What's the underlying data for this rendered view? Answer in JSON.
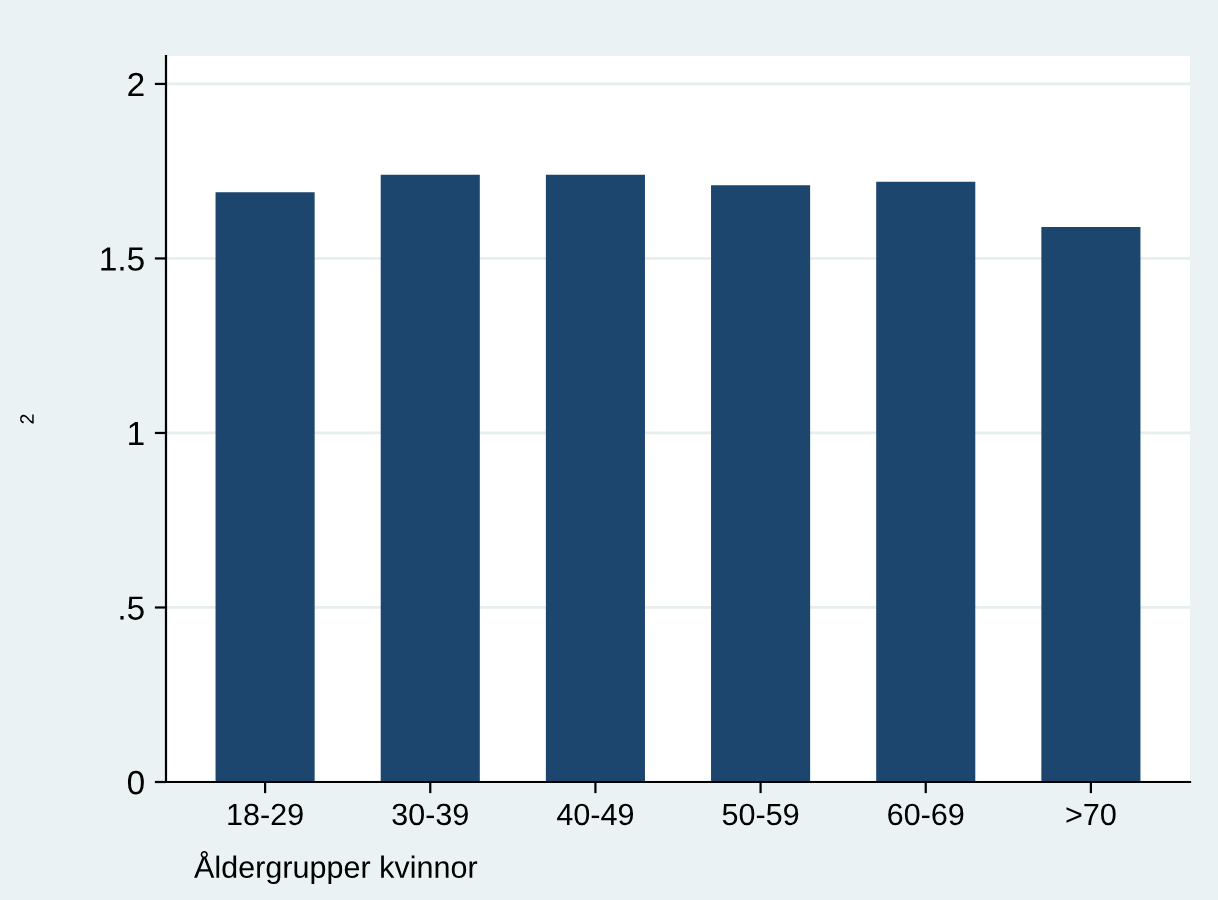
{
  "chart_data": {
    "type": "bar",
    "ylabel": "2",
    "xlabel": "Åldergrupper kvinnor",
    "categories": [
      "18-29",
      "30-39",
      "40-49",
      "50-59",
      "60-69",
      ">70"
    ],
    "values": [
      1.69,
      1.74,
      1.74,
      1.71,
      1.72,
      1.59
    ],
    "color": "#1c466e",
    "ylim": [
      0,
      2.08
    ],
    "yticks": [
      0,
      {
        "value": 0.5,
        "label": ".5"
      },
      1,
      1.5,
      2
    ],
    "grid": "y",
    "legend": false
  }
}
